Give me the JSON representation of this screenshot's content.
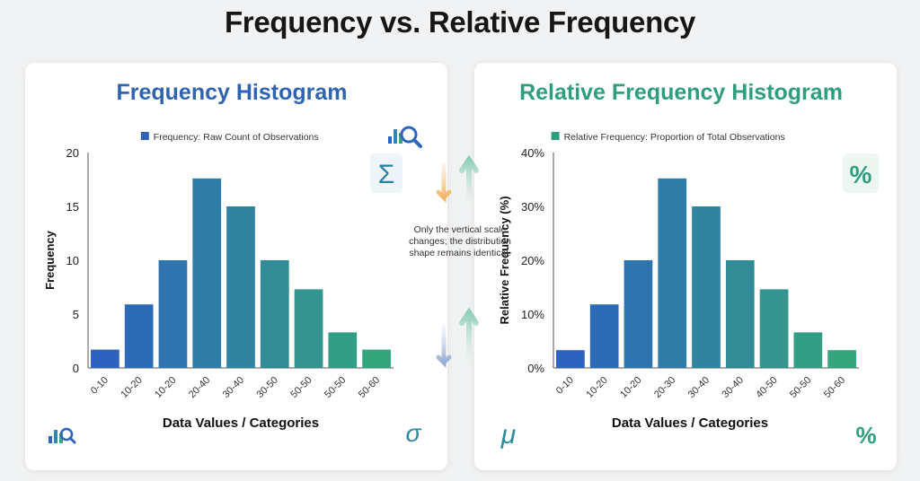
{
  "title": "Frequency vs. Relative Frequency",
  "center_note": "Only the vertical scale changes; the distribution shape remains identical.",
  "icons": {
    "top_left_panel": "bar-chart-magnifier-icon",
    "sigma": "Σ",
    "sigma_small": "σ",
    "mu": "μ",
    "percent": "%"
  },
  "colors": {
    "title_left": "#2e64b0",
    "title_right": "#2f9e7e",
    "grad_start": "#2d63bf",
    "grad_end": "#35a57d"
  },
  "chart_data": [
    {
      "type": "bar",
      "title": "Frequency Histogram",
      "legend": "Frequency: Raw Count of Observations",
      "xlabel": "Data Values / Categories",
      "ylabel": "Frequency",
      "ylim": [
        0,
        20
      ],
      "yticks": [
        "0",
        "5",
        "10",
        "15",
        "20"
      ],
      "categories": [
        "0-10",
        "10-20",
        "10-20",
        "20-40",
        "30-40",
        "30-50",
        "50-50",
        "50-50",
        "50-60"
      ],
      "values": [
        1.7,
        5.9,
        10,
        17.6,
        15,
        10,
        7.3,
        3.3,
        1.7
      ]
    },
    {
      "type": "bar",
      "title": "Relative Frequency Histogram",
      "legend": "Relative Frequency: Proportion of Total Observations",
      "xlabel": "Data Values / Categories",
      "ylabel": "Relative Frequency (%)",
      "ylim": [
        0,
        40
      ],
      "yticks": [
        "0%",
        "10%",
        "20%",
        "30%",
        "40%"
      ],
      "categories": [
        "0-10",
        "10-20",
        "10-20",
        "20-30",
        "30-40",
        "30-40",
        "40-50",
        "50-50",
        "50-60"
      ],
      "values": [
        3.3,
        11.8,
        20,
        35.2,
        30,
        20,
        14.6,
        6.6,
        3.3
      ]
    }
  ]
}
